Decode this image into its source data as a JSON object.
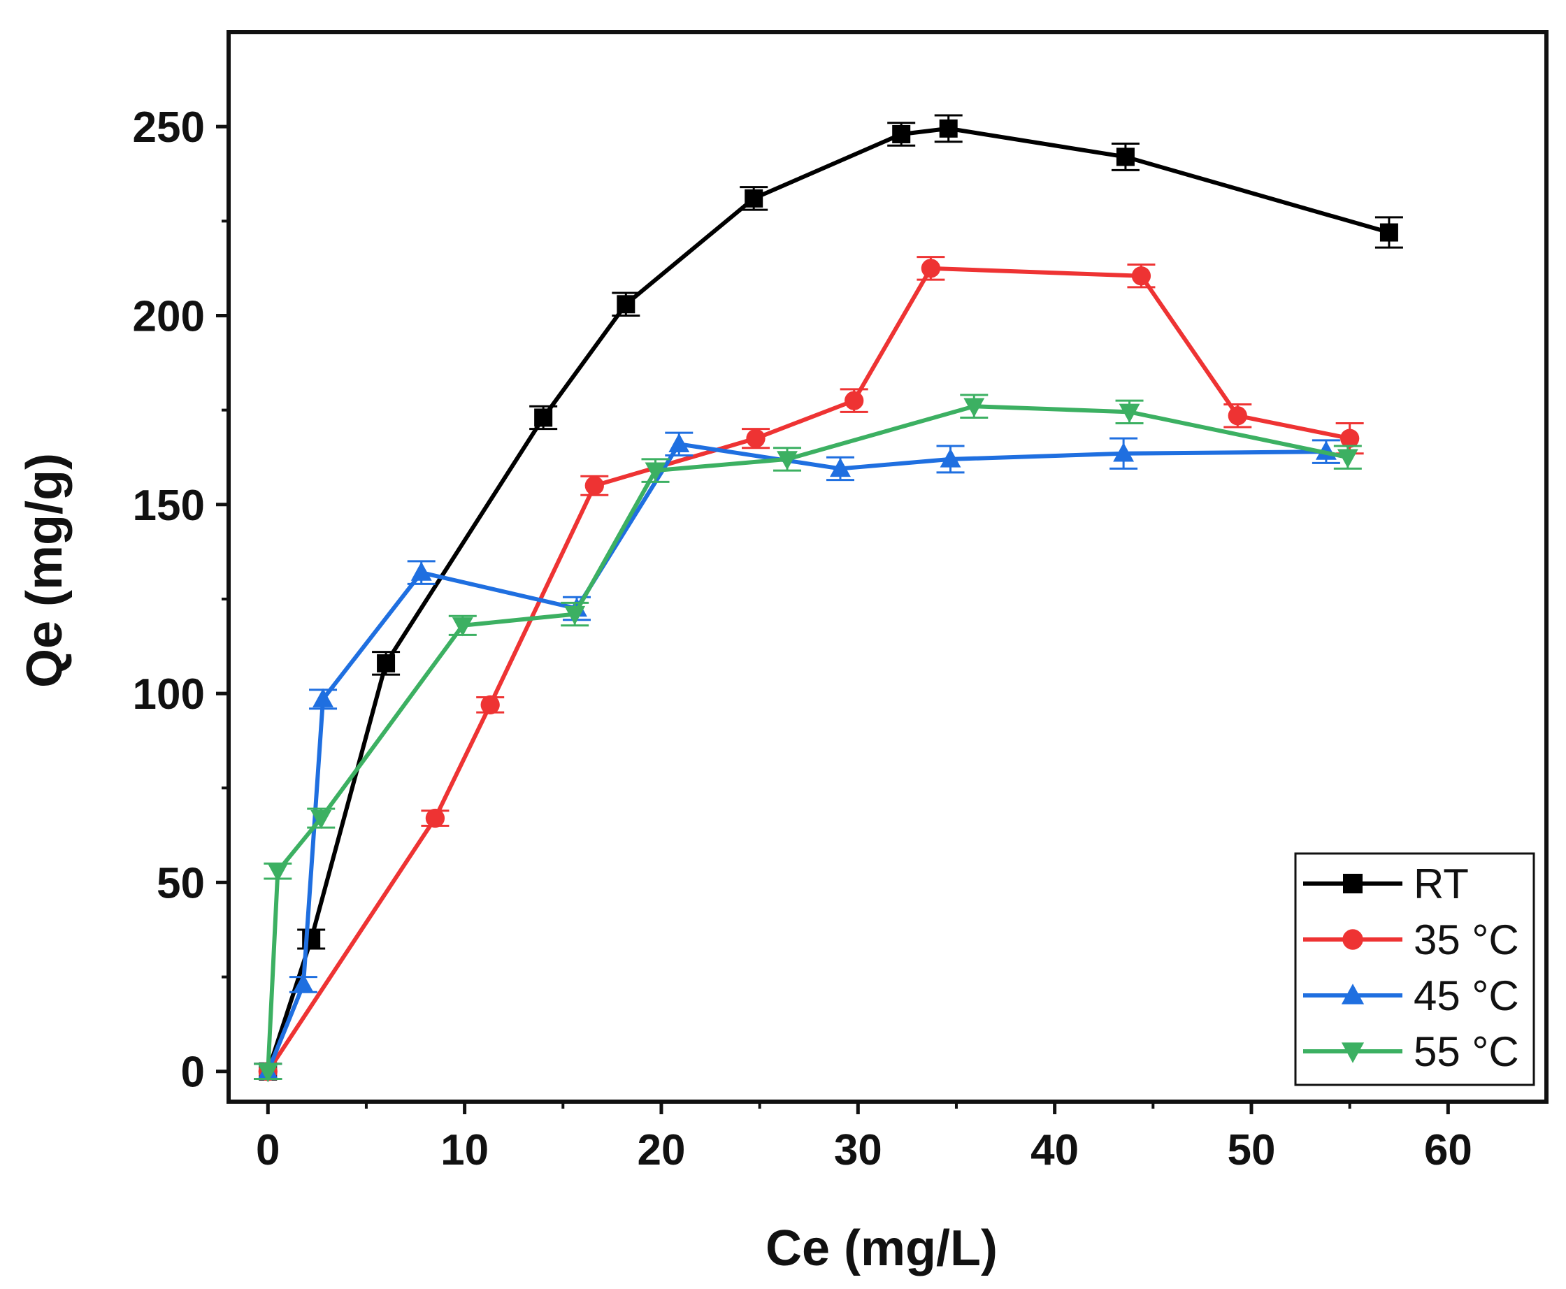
{
  "chart_data": {
    "type": "line",
    "xlabel": "Ce (mg/L)",
    "ylabel": "Qe (mg/g)",
    "xlim": [
      -2,
      65
    ],
    "ylim": [
      -8,
      275
    ],
    "xticks": [
      0,
      10,
      20,
      30,
      40,
      50,
      60
    ],
    "yticks": [
      0,
      50,
      100,
      150,
      200,
      250
    ],
    "xtick_labels": [
      "0",
      "10",
      "20",
      "30",
      "40",
      "50",
      "60"
    ],
    "ytick_labels": [
      "0",
      "50",
      "100",
      "150",
      "200",
      "250"
    ],
    "grid": false,
    "legend_position": "bottom-right",
    "series": [
      {
        "name": "RT",
        "color": "#000000",
        "marker": "square",
        "x": [
          0,
          2.2,
          6,
          14,
          18.2,
          24.7,
          32.2,
          34.6,
          43.6,
          57
        ],
        "y": [
          0,
          35,
          108,
          173,
          203,
          231,
          248,
          249.5,
          242,
          222
        ],
        "err": [
          2,
          2.5,
          3,
          3,
          3,
          3,
          3,
          3.5,
          3.5,
          4
        ]
      },
      {
        "name": "35 °C",
        "color": "#ee3333",
        "marker": "circle",
        "x": [
          0,
          8.5,
          11.3,
          16.6,
          24.8,
          29.8,
          33.7,
          44.4,
          49.3,
          55
        ],
        "y": [
          0,
          67,
          97,
          155,
          167.5,
          177.5,
          212.5,
          210.5,
          173.5,
          167.5
        ],
        "err": [
          2,
          2,
          2,
          2.5,
          2.5,
          3,
          3,
          3,
          3,
          4
        ]
      },
      {
        "name": "45 °C",
        "color": "#1f6fe0",
        "marker": "triangle-up",
        "x": [
          0,
          1.8,
          2.8,
          7.8,
          15.7,
          20.9,
          29.1,
          34.7,
          43.5,
          53.8
        ],
        "y": [
          0,
          23,
          98.5,
          132,
          122.5,
          166,
          159.5,
          162,
          163.5,
          164
        ],
        "err": [
          2,
          2,
          2.5,
          3,
          3,
          3,
          3,
          3.5,
          4,
          3
        ]
      },
      {
        "name": "55 °C",
        "color": "#3cb062",
        "marker": "triangle-down",
        "x": [
          0,
          0.5,
          2.7,
          9.9,
          15.6,
          19.7,
          26.4,
          35.9,
          43.8,
          54.9
        ],
        "y": [
          0,
          53,
          67,
          118,
          121,
          159,
          162,
          176,
          174.5,
          162.5
        ],
        "err": [
          2,
          2,
          2.5,
          2.5,
          3,
          3,
          3,
          3,
          3,
          3
        ]
      }
    ]
  }
}
